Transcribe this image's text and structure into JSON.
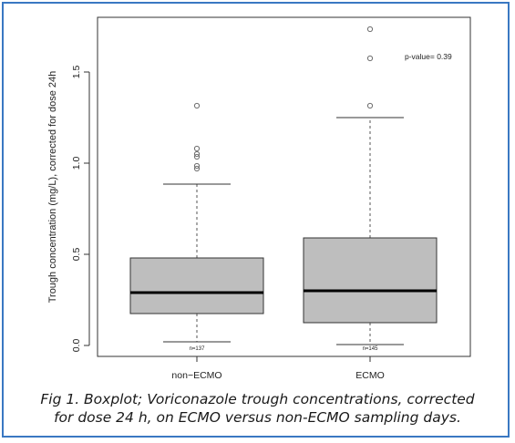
{
  "chart_data": {
    "type": "boxplot",
    "ylabel": "Trough concentration (mg/L), corrected for dose 24h",
    "ylim": [
      0.0,
      1.8
    ],
    "yticks": [
      0.0,
      0.5,
      1.0,
      1.5
    ],
    "ytick_labels": [
      "0.0",
      "0.5",
      "1.0",
      "1.5"
    ],
    "categories": [
      "non−ECMO",
      "ECMO"
    ],
    "annotation": "p-value= 0.39",
    "boxes": [
      {
        "category": "non−ECMO",
        "n_label": "n=137",
        "whisker_low": 0.02,
        "q1": 0.175,
        "median": 0.29,
        "q3": 0.48,
        "whisker_high": 0.885,
        "outliers": [
          0.97,
          0.985,
          1.035,
          1.05,
          1.08,
          1.315
        ]
      },
      {
        "category": "ECMO",
        "n_label": "n=145",
        "whisker_low": 0.005,
        "q1": 0.125,
        "median": 0.3,
        "q3": 0.59,
        "whisker_high": 1.25,
        "outliers": [
          1.315,
          1.575,
          1.735
        ]
      }
    ],
    "colors": {
      "box_fill": "#bebebe",
      "outline": "#333333",
      "outlier": "#6e6e6e"
    }
  },
  "caption": {
    "line1": "Fig 1. Boxplot; Voriconazole trough concentrations, corrected",
    "line2": "for dose 24 h, on ECMO versus non-ECMO sampling days."
  }
}
